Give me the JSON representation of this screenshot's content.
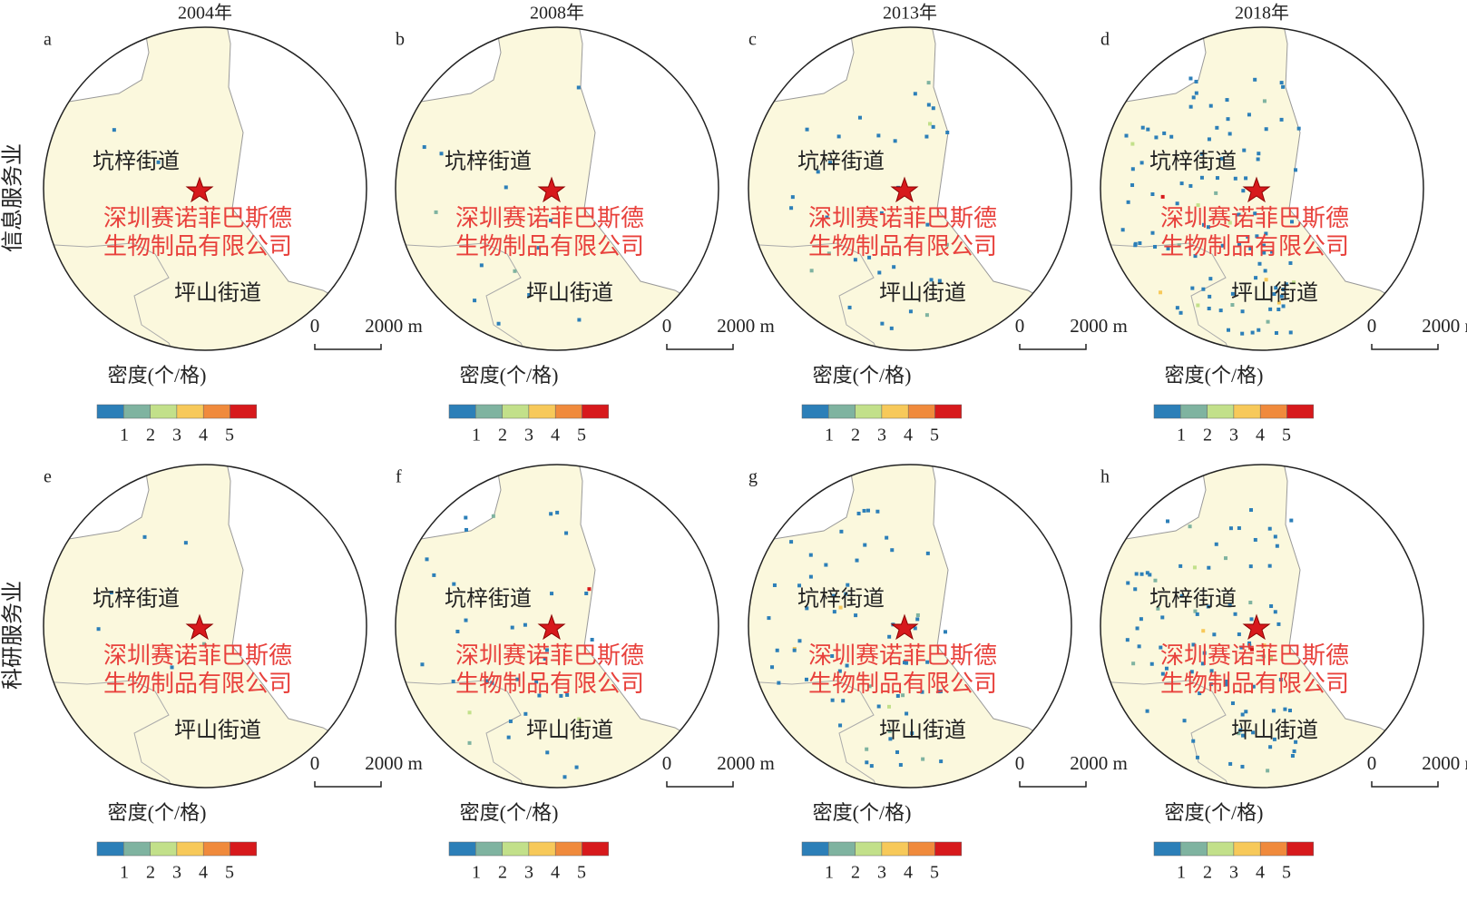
{
  "columns": [
    "2004年",
    "2008年",
    "2013年",
    "2018年"
  ],
  "rows": [
    "信息服务业",
    "科研服务业"
  ],
  "panels": [
    "a",
    "b",
    "c",
    "d",
    "e",
    "f",
    "g",
    "h"
  ],
  "map_labels": {
    "town_north": "坑梓街道",
    "town_south": "坪山街道",
    "company_line1": "深圳赛诺菲巴斯德",
    "company_line2": "生物制品有限公司"
  },
  "scale_bar": {
    "start": "0",
    "end": "2000 m"
  },
  "legend": {
    "title": "密度(个/格)",
    "ticks": [
      "1",
      "2",
      "3",
      "4",
      "5"
    ],
    "colors": [
      "#2c7fb8",
      "#7fb3a0",
      "#c2e08a",
      "#f7c95a",
      "#f08a3c",
      "#d7191c"
    ]
  }
}
